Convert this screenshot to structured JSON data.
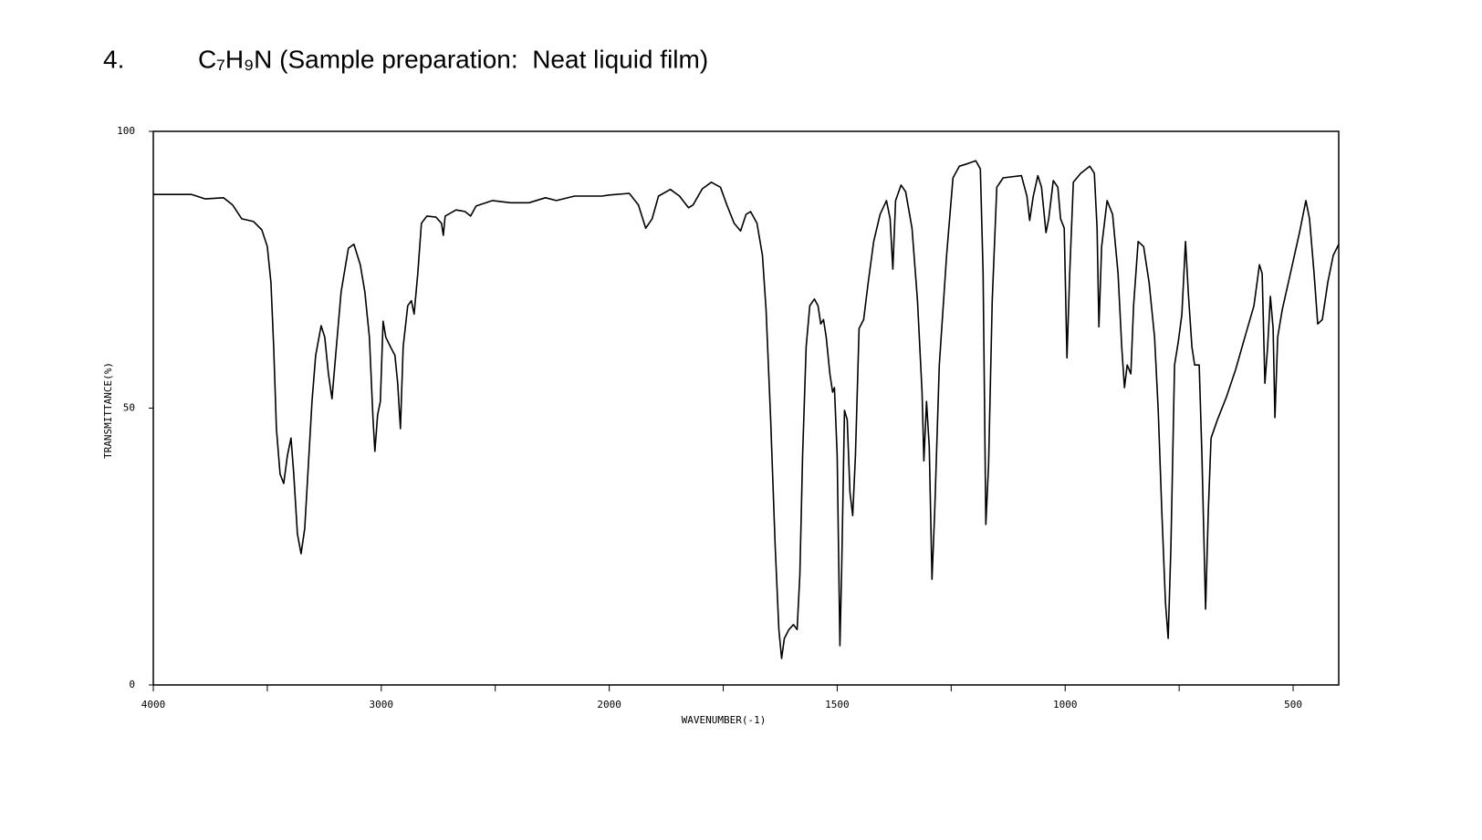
{
  "chart_data": {
    "type": "line",
    "number": "4.",
    "title": "C₇H₉N (Sample preparation:  Neat liquid film)",
    "xlabel": "WAVENUMBER(-1)",
    "ylabel": "TRANSMITTANCE(%)",
    "color": "#000000",
    "xlim": [
      4000,
      400
    ],
    "xscale_break": 2000,
    "xticks": [
      4000,
      3000,
      2000,
      1500,
      1000,
      500
    ],
    "xminor_ticks": [
      3500,
      2500,
      1750,
      1250,
      750
    ],
    "ylim": [
      0,
      100
    ],
    "yticks": [
      0,
      50,
      100
    ],
    "x": [
      4000,
      3832,
      3772,
      3692,
      3652,
      3612,
      3560,
      3524,
      3500,
      3484,
      3472,
      3460,
      3444,
      3428,
      3412,
      3396,
      3384,
      3368,
      3352,
      3336,
      3320,
      3304,
      3288,
      3264,
      3248,
      3232,
      3216,
      3200,
      3176,
      3144,
      3120,
      3092,
      3072,
      3052,
      3036,
      3028,
      3016,
      3004,
      2992,
      2980,
      2960,
      2940,
      2928,
      2916,
      2904,
      2884,
      2868,
      2856,
      2840,
      2824,
      2800,
      2760,
      2736,
      2728,
      2720,
      2672,
      2632,
      2608,
      2584,
      2512,
      2432,
      2352,
      2280,
      2232,
      2152,
      2032,
      2000,
      1956,
      1936,
      1920,
      1906,
      1892,
      1866,
      1846,
      1826,
      1816,
      1796,
      1776,
      1756,
      1742,
      1726,
      1712,
      1700,
      1690,
      1676,
      1664,
      1656,
      1646,
      1636,
      1628,
      1622,
      1616,
      1606,
      1596,
      1588,
      1582,
      1576,
      1568,
      1560,
      1550,
      1542,
      1536,
      1530,
      1524,
      1516,
      1510,
      1506,
      1500,
      1494,
      1490,
      1484,
      1478,
      1472,
      1466,
      1460,
      1452,
      1442,
      1432,
      1420,
      1406,
      1392,
      1384,
      1378,
      1372,
      1360,
      1350,
      1336,
      1324,
      1314,
      1310,
      1304,
      1298,
      1292,
      1286,
      1276,
      1260,
      1246,
      1232,
      1216,
      1196,
      1186,
      1180,
      1174,
      1168,
      1160,
      1150,
      1136,
      1096,
      1084,
      1078,
      1070,
      1060,
      1052,
      1042,
      1036,
      1026,
      1016,
      1010,
      1002,
      996,
      990,
      982,
      966,
      946,
      936,
      930,
      926,
      920,
      908,
      896,
      884,
      876,
      870,
      864,
      856,
      850,
      840,
      828,
      816,
      804,
      796,
      788,
      780,
      774,
      768,
      760,
      752,
      744,
      736,
      730,
      722,
      716,
      706,
      700,
      692,
      686,
      680,
      666,
      646,
      626,
      606,
      586,
      574,
      568,
      562,
      556,
      550,
      544,
      540,
      534,
      524,
      506,
      486,
      472,
      464,
      454,
      446,
      436,
      424,
      412,
      400
    ],
    "values": [
      88.6,
      88.6,
      87.8,
      88,
      86.7,
      84.2,
      83.7,
      82.2,
      79.2,
      72.7,
      61.1,
      46.3,
      38.1,
      36.4,
      41.4,
      44.6,
      38.1,
      27.3,
      23.7,
      28.2,
      39.7,
      51.2,
      59.5,
      64.9,
      62.8,
      56.2,
      51.7,
      59.5,
      71,
      78.9,
      79.6,
      75.9,
      71,
      62.8,
      47.9,
      42.2,
      48.8,
      51.2,
      65.7,
      62.8,
      61.1,
      59.5,
      54.5,
      46.3,
      61.1,
      68.5,
      69.4,
      67,
      74.3,
      83.4,
      84.7,
      84.5,
      83.4,
      81.2,
      84.7,
      85.8,
      85.5,
      84.7,
      86.5,
      87.5,
      87.1,
      87.1,
      88,
      87.5,
      88.3,
      88.3,
      88.5,
      88.8,
      86.7,
      82.5,
      84.2,
      88.3,
      89.5,
      88.3,
      86.2,
      86.7,
      89.6,
      90.8,
      89.9,
      86.7,
      83.4,
      82,
      85,
      85.5,
      83.4,
      77.6,
      67.7,
      47.9,
      24.9,
      10,
      4.8,
      8.4,
      10,
      10.9,
      10,
      19.9,
      41.4,
      61.1,
      68.5,
      69.7,
      68.5,
      65.2,
      66,
      62.8,
      56.2,
      52.9,
      53.7,
      41.4,
      7.1,
      21.6,
      49.6,
      47.9,
      34.8,
      30.6,
      41.4,
      64.4,
      66,
      72.7,
      80.1,
      85,
      87.5,
      84.2,
      75.1,
      87.5,
      90.3,
      89.1,
      82.5,
      69.4,
      52.9,
      40.5,
      51.2,
      43,
      19.1,
      31.5,
      57.8,
      77.6,
      91.6,
      93.7,
      94.1,
      94.7,
      93.2,
      74.3,
      29,
      39.7,
      69.4,
      89.9,
      91.6,
      92,
      88.3,
      83.9,
      88.3,
      92,
      89.9,
      81.7,
      84.2,
      91.1,
      89.9,
      84.2,
      82.5,
      59.1,
      74.3,
      90.8,
      92.4,
      93.7,
      92.4,
      82.5,
      64.7,
      79.2,
      87.5,
      85,
      74.3,
      61.1,
      53.7,
      57.8,
      56.2,
      68.5,
      80.1,
      79.2,
      72.7,
      62.8,
      49.6,
      31.5,
      15,
      8.4,
      24.9,
      57.8,
      61.9,
      66.9,
      80.1,
      71,
      61.1,
      57.8,
      57.8,
      41.4,
      13.7,
      31.5,
      44.6,
      47.9,
      52.1,
      57,
      62.8,
      68.5,
      75.9,
      74.3,
      54.5,
      61.1,
      70.2,
      64.4,
      48.3,
      62.8,
      67.7,
      74.3,
      81.7,
      87.5,
      84.2,
      74.3,
      65.2,
      66,
      72.7,
      77.6,
      79.6
    ]
  }
}
